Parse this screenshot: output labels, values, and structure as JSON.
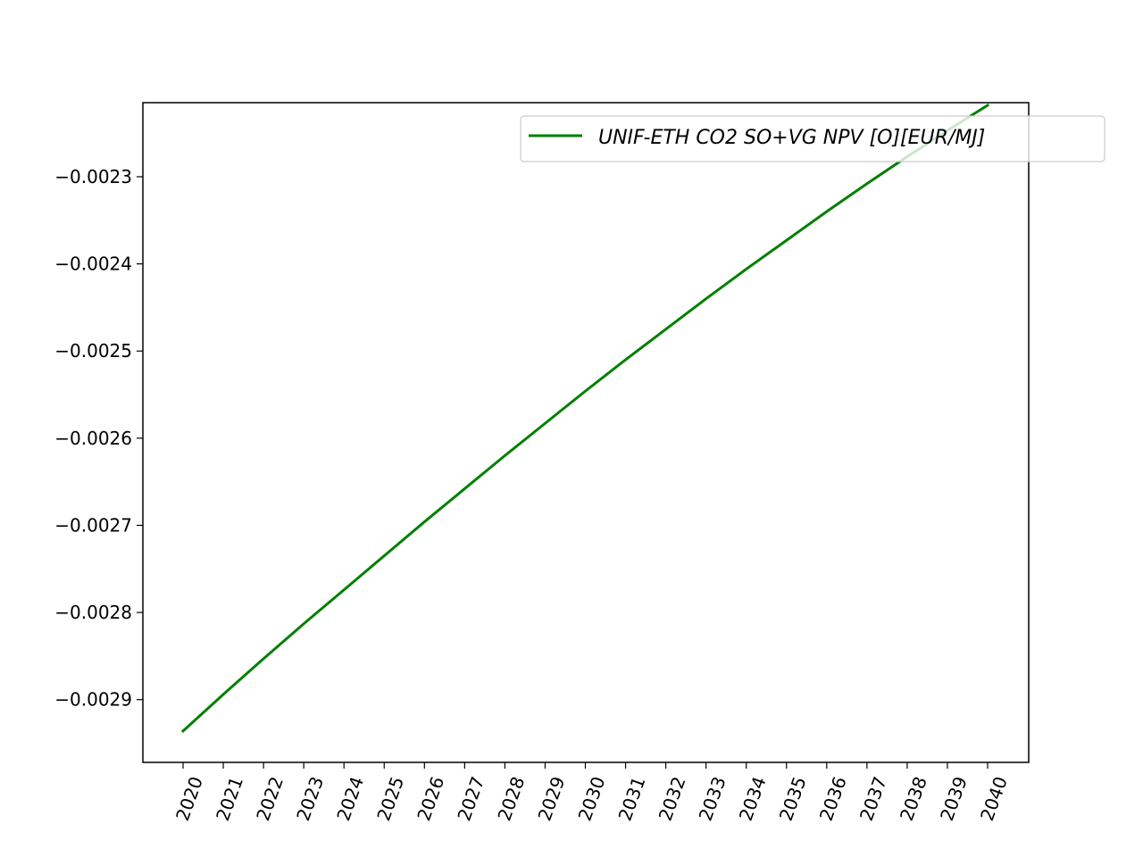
{
  "chart_data": {
    "type": "line",
    "title": "",
    "xlabel": "",
    "ylabel": "",
    "x": [
      "2020",
      "2021",
      "2022",
      "2023",
      "2024",
      "2025",
      "2026",
      "2027",
      "2028",
      "2029",
      "2030",
      "2031",
      "2032",
      "2033",
      "2034",
      "2035",
      "2036",
      "2037",
      "2038",
      "2039",
      "2040"
    ],
    "series": [
      {
        "name": "UNIF-ETH CO2 SO+VG NPV [O][EUR/MJ]",
        "color": "#008000",
        "values": [
          -0.002936,
          -0.002894,
          -0.002853,
          -0.002813,
          -0.002774,
          -0.002735,
          -0.002696,
          -0.002658,
          -0.00262,
          -0.002583,
          -0.002546,
          -0.00251,
          -0.002475,
          -0.00244,
          -0.002406,
          -0.002373,
          -0.00234,
          -0.002308,
          -0.002277,
          -0.002247,
          -0.002218
        ]
      }
    ],
    "yticks": [
      -0.0029,
      -0.0028,
      -0.0027,
      -0.0026,
      -0.0025,
      -0.0024,
      -0.0023
    ],
    "ytick_labels": [
      "−0.0029",
      "−0.0028",
      "−0.0027",
      "−0.0026",
      "−0.0025",
      "−0.0024",
      "−0.0023"
    ],
    "ylim": [
      -0.002972,
      -0.002215
    ],
    "xtick_rotation": -70,
    "grid": false,
    "legend_position": "upper right"
  }
}
